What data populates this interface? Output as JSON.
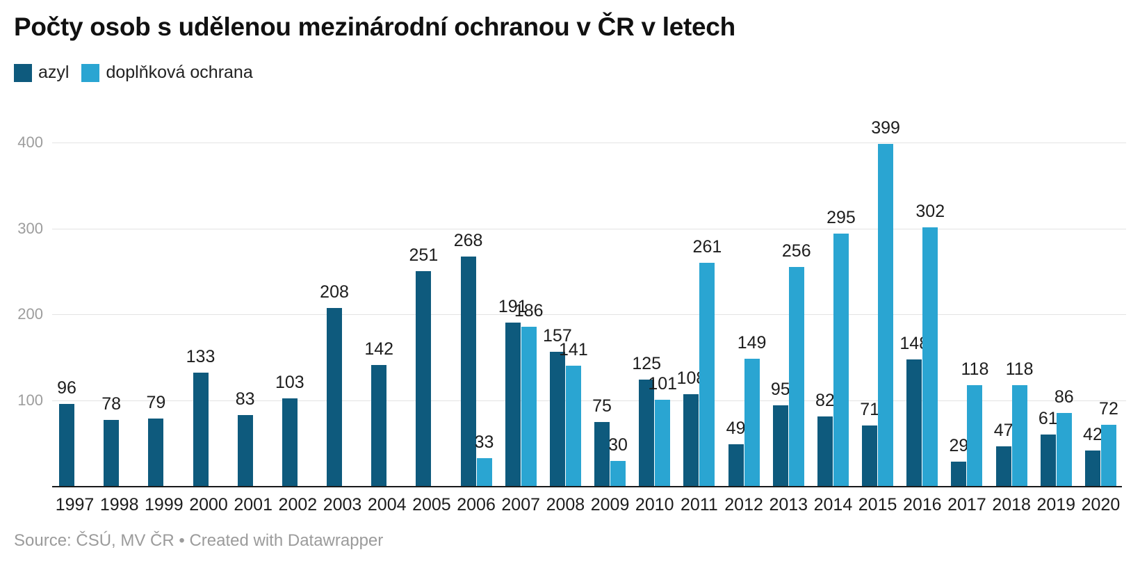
{
  "header": {
    "title": "Počty osob s udělenou mezinárodní ochranou v ČR v letech"
  },
  "footer": {
    "source": "Source: ČSÚ, MV ČR • Created with Datawrapper"
  },
  "chart_data": {
    "type": "bar",
    "grouped": true,
    "title": "Počty osob s udělenou mezinárodní ochranou v ČR v letech",
    "categories": [
      "1997",
      "1998",
      "1999",
      "2000",
      "2001",
      "2002",
      "2003",
      "2004",
      "2005",
      "2006",
      "2007",
      "2008",
      "2009",
      "2010",
      "2011",
      "2012",
      "2013",
      "2014",
      "2015",
      "2016",
      "2017",
      "2018",
      "2019",
      "2020"
    ],
    "series": [
      {
        "name": "azyl",
        "color": "#0e5a7d",
        "values": [
          96,
          78,
          79,
          133,
          83,
          103,
          208,
          142,
          251,
          268,
          191,
          157,
          75,
          125,
          108,
          49,
          95,
          82,
          71,
          148,
          29,
          47,
          61,
          42
        ]
      },
      {
        "name": "doplňková ochrana",
        "color": "#2aa5d2",
        "values": [
          null,
          null,
          null,
          null,
          null,
          null,
          null,
          null,
          null,
          33,
          186,
          141,
          30,
          101,
          261,
          149,
          256,
          295,
          399,
          302,
          118,
          118,
          86,
          72
        ]
      }
    ],
    "xlabel": "",
    "ylabel": "",
    "ylim": [
      0,
      400
    ],
    "yticks": [
      100,
      200,
      300,
      400
    ],
    "grid": "horizontal",
    "gridline_color": "#e3e3e3",
    "axis_label_color": "#9d9d9d",
    "value_labels": true,
    "legend_position": "top-left"
  }
}
